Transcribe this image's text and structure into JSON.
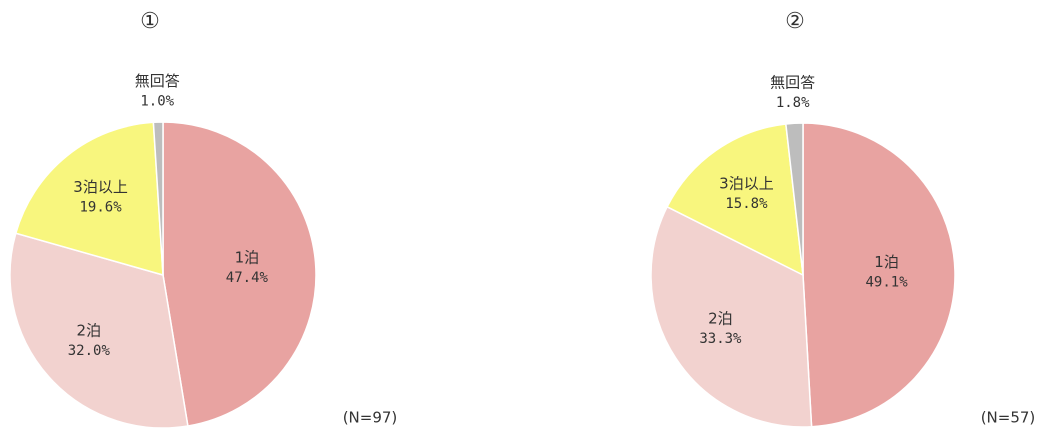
{
  "chart_data": [
    {
      "type": "pie",
      "title": "①",
      "categories": [
        "1泊",
        "2泊",
        "3泊以上",
        "無回答"
      ],
      "values": [
        47.4,
        32.0,
        19.6,
        1.0
      ],
      "value_labels": [
        "47.4%",
        "32.0%",
        "19.6%",
        "1.0%"
      ],
      "colors": [
        "#e8a3a1",
        "#f2d2cf",
        "#f8f67e",
        "#bdbdbd"
      ],
      "note": "(N=97)"
    },
    {
      "type": "pie",
      "title": "②",
      "categories": [
        "1泊",
        "2泊",
        "3泊以上",
        "無回答"
      ],
      "values": [
        49.1,
        33.3,
        15.8,
        1.8
      ],
      "value_labels": [
        "49.1%",
        "33.3%",
        "15.8%",
        "1.8%"
      ],
      "colors": [
        "#e8a3a1",
        "#f2d2cf",
        "#f8f67e",
        "#bdbdbd"
      ],
      "note": "(N=57)"
    }
  ]
}
